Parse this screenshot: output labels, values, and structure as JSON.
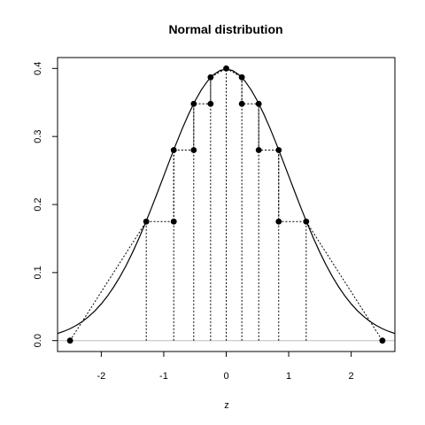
{
  "chart_data": {
    "type": "line",
    "title": "Normal distribution",
    "xlabel": "z",
    "ylabel": "",
    "xlim": [
      -2.7,
      2.7
    ],
    "ylim": [
      -0.016,
      0.416
    ],
    "x_ticks": [
      -2,
      -1,
      0,
      1,
      2
    ],
    "x_tick_labels": [
      "-2",
      "-1",
      "0",
      "1",
      "2"
    ],
    "y_ticks": [
      0.0,
      0.1,
      0.2,
      0.3,
      0.4
    ],
    "y_tick_labels": [
      "0.0",
      "0.1",
      "0.2",
      "0.3",
      "0.4"
    ],
    "grid": false,
    "legend": "none",
    "series": [
      {
        "kind": "density-curve",
        "style": "solid",
        "color": "#000000",
        "x": [
          -2.7,
          -2.6,
          -2.5,
          -2.4,
          -2.3,
          -2.2,
          -2.1,
          -2.0,
          -1.9,
          -1.8,
          -1.7,
          -1.6,
          -1.5,
          -1.4,
          -1.3,
          -1.2,
          -1.1,
          -1.0,
          -0.9,
          -0.8,
          -0.7,
          -0.6,
          -0.5,
          -0.4,
          -0.3,
          -0.2,
          -0.1,
          0.0,
          0.1,
          0.2,
          0.3,
          0.4,
          0.5,
          0.6,
          0.7,
          0.8,
          0.9,
          1.0,
          1.1,
          1.2,
          1.3,
          1.4,
          1.5,
          1.6,
          1.7,
          1.8,
          1.9,
          2.0,
          2.1,
          2.2,
          2.3,
          2.4,
          2.5,
          2.6,
          2.7
        ],
        "y": [
          0.0104,
          0.0136,
          0.0175,
          0.0224,
          0.0283,
          0.0355,
          0.044,
          0.054,
          0.0656,
          0.079,
          0.094,
          0.1109,
          0.1295,
          0.1497,
          0.1714,
          0.1942,
          0.2179,
          0.242,
          0.2661,
          0.2897,
          0.3123,
          0.3332,
          0.3521,
          0.3683,
          0.3814,
          0.391,
          0.397,
          0.3989,
          0.397,
          0.391,
          0.3814,
          0.3683,
          0.3521,
          0.3332,
          0.3123,
          0.2897,
          0.2661,
          0.242,
          0.2179,
          0.1942,
          0.1714,
          0.1497,
          0.1295,
          0.1109,
          0.094,
          0.079,
          0.0656,
          0.054,
          0.044,
          0.0355,
          0.0283,
          0.0224,
          0.0175,
          0.0136,
          0.0104
        ]
      },
      {
        "kind": "points",
        "marker": "filled-circle",
        "color": "#000000",
        "x": [
          -2.5,
          -1.28,
          -0.84,
          -0.84,
          -0.52,
          -0.52,
          -0.25,
          -0.25,
          0.0,
          0.25,
          0.25,
          0.52,
          0.52,
          0.84,
          0.84,
          1.28,
          2.5
        ],
        "y": [
          0.0,
          0.175,
          0.175,
          0.28,
          0.28,
          0.348,
          0.348,
          0.387,
          0.4,
          0.387,
          0.348,
          0.348,
          0.28,
          0.28,
          0.175,
          0.175,
          0.0
        ]
      }
    ],
    "dotted_vertical_lines_at_x": [
      -1.28,
      -0.84,
      -0.52,
      -0.25,
      0.0,
      0.25,
      0.52,
      0.84,
      1.28
    ],
    "reference_line_y": 0.0
  }
}
